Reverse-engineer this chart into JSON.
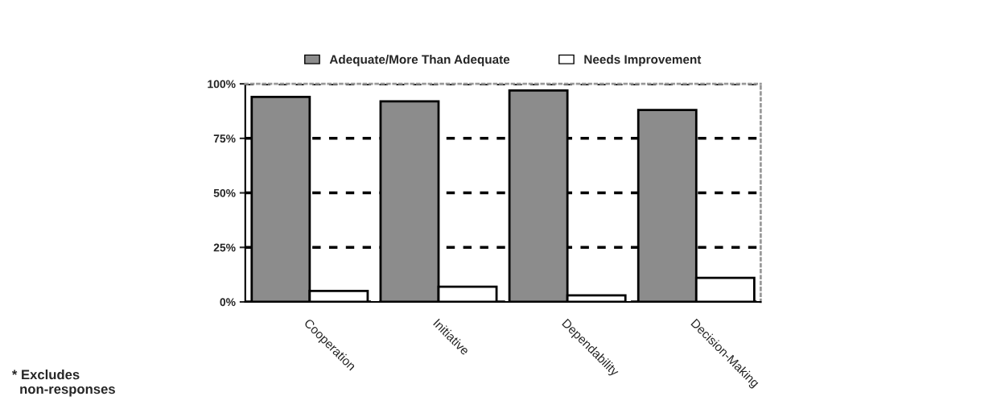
{
  "chart_data": {
    "type": "bar",
    "categories": [
      "Cooperation",
      "Initiative",
      "Dependability",
      "Decision-Making"
    ],
    "series": [
      {
        "name": "Adequate/More Than Adequate",
        "color": "#8c8c8c",
        "values": [
          94,
          92,
          97,
          88
        ]
      },
      {
        "name": "Needs Improvement",
        "color": "#ffffff",
        "values": [
          5,
          7,
          3,
          11
        ]
      }
    ],
    "ylim": [
      0,
      100
    ],
    "yticks": [
      {
        "value": 0,
        "label": "0%"
      },
      {
        "value": 25,
        "label": "25%"
      },
      {
        "value": 50,
        "label": "50%"
      },
      {
        "value": 75,
        "label": "75%"
      },
      {
        "value": 100,
        "label": "100%"
      }
    ],
    "grid": "y",
    "line_style": "dashed",
    "legend": "top",
    "annotations": [
      "* Excludes\n  non-responses"
    ]
  }
}
